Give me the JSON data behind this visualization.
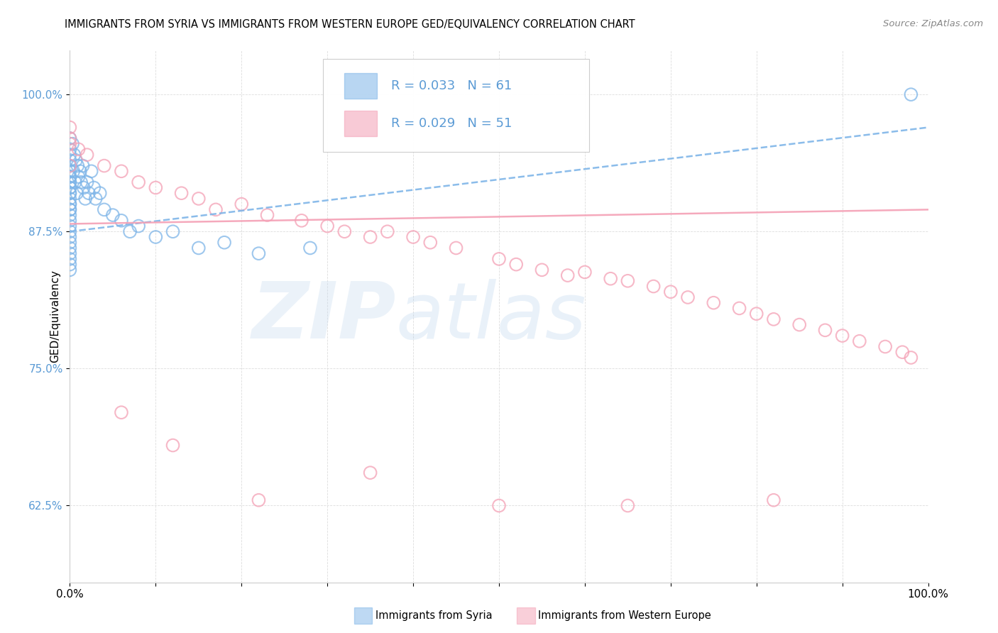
{
  "title": "IMMIGRANTS FROM SYRIA VS IMMIGRANTS FROM WESTERN EUROPE GED/EQUIVALENCY CORRELATION CHART",
  "source": "Source: ZipAtlas.com",
  "ylabel": "GED/Equivalency",
  "yticks": [
    "62.5%",
    "75.0%",
    "87.5%",
    "100.0%"
  ],
  "ytick_values": [
    0.625,
    0.75,
    0.875,
    1.0
  ],
  "xlim": [
    0.0,
    1.0
  ],
  "ylim": [
    0.555,
    1.04
  ],
  "legend_r1": "R = 0.033",
  "legend_n1": "N = 61",
  "legend_r2": "R = 0.029",
  "legend_n2": "N = 51",
  "legend_label1": "Immigrants from Syria",
  "legend_label2": "Immigrants from Western Europe",
  "blue_color": "#7EB5E8",
  "pink_color": "#F4A0B5",
  "text_color": "#5B9BD5",
  "background_color": "#FFFFFF",
  "syria_x": [
    0.0,
    0.0,
    0.0,
    0.0,
    0.0,
    0.0,
    0.0,
    0.0,
    0.0,
    0.0,
    0.0,
    0.0,
    0.0,
    0.0,
    0.0,
    0.0,
    0.0,
    0.0,
    0.0,
    0.0,
    0.0,
    0.0,
    0.0,
    0.0,
    0.0,
    0.0,
    0.0,
    0.0,
    0.0,
    0.0,
    0.003,
    0.004,
    0.005,
    0.006,
    0.007,
    0.008,
    0.009,
    0.01,
    0.012,
    0.013,
    0.015,
    0.016,
    0.018,
    0.02,
    0.022,
    0.025,
    0.028,
    0.03,
    0.035,
    0.04,
    0.05,
    0.06,
    0.07,
    0.08,
    0.1,
    0.12,
    0.15,
    0.18,
    0.22,
    0.28,
    0.98
  ],
  "syria_y": [
    0.96,
    0.95,
    0.945,
    0.94,
    0.935,
    0.93,
    0.925,
    0.92,
    0.915,
    0.91,
    0.905,
    0.9,
    0.895,
    0.89,
    0.885,
    0.88,
    0.875,
    0.87,
    0.865,
    0.86,
    0.855,
    0.85,
    0.845,
    0.84,
    0.895,
    0.9,
    0.91,
    0.915,
    0.92,
    0.925,
    0.955,
    0.93,
    0.945,
    0.92,
    0.94,
    0.91,
    0.935,
    0.925,
    0.93,
    0.92,
    0.935,
    0.915,
    0.905,
    0.92,
    0.91,
    0.93,
    0.915,
    0.905,
    0.91,
    0.895,
    0.89,
    0.885,
    0.875,
    0.88,
    0.87,
    0.875,
    0.86,
    0.865,
    0.855,
    0.86,
    1.0
  ],
  "western_x": [
    0.0,
    0.0,
    0.0,
    0.0,
    0.01,
    0.02,
    0.04,
    0.06,
    0.08,
    0.1,
    0.13,
    0.15,
    0.17,
    0.2,
    0.23,
    0.27,
    0.3,
    0.32,
    0.35,
    0.37,
    0.4,
    0.42,
    0.45,
    0.5,
    0.52,
    0.55,
    0.58,
    0.6,
    0.63,
    0.65,
    0.68,
    0.7,
    0.72,
    0.75,
    0.78,
    0.8,
    0.82,
    0.85,
    0.88,
    0.9,
    0.92,
    0.95,
    0.97,
    0.98,
    0.06,
    0.12,
    0.22,
    0.35,
    0.5,
    0.65,
    0.82
  ],
  "western_y": [
    0.97,
    0.96,
    0.955,
    0.935,
    0.95,
    0.945,
    0.935,
    0.93,
    0.92,
    0.915,
    0.91,
    0.905,
    0.895,
    0.9,
    0.89,
    0.885,
    0.88,
    0.875,
    0.87,
    0.875,
    0.87,
    0.865,
    0.86,
    0.85,
    0.845,
    0.84,
    0.835,
    0.838,
    0.832,
    0.83,
    0.825,
    0.82,
    0.815,
    0.81,
    0.805,
    0.8,
    0.795,
    0.79,
    0.785,
    0.78,
    0.775,
    0.77,
    0.765,
    0.76,
    0.71,
    0.68,
    0.63,
    0.655,
    0.625,
    0.625,
    0.63
  ],
  "syria_trend_x": [
    0.0,
    1.0
  ],
  "syria_trend_y": [
    0.875,
    0.97
  ],
  "western_trend_x": [
    0.0,
    1.0
  ],
  "western_trend_y": [
    0.882,
    0.895
  ]
}
